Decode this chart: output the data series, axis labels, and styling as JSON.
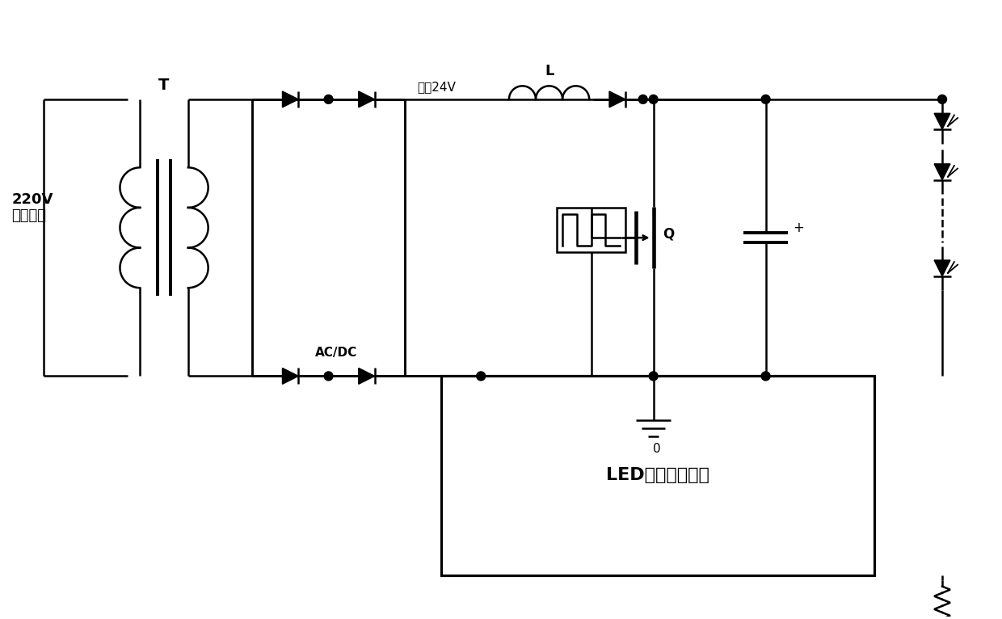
{
  "bg_color": "#ffffff",
  "line_color": "#000000",
  "lw": 1.8,
  "fig_w": 12.4,
  "fig_h": 7.66,
  "label_220v": "220V\n交流市电",
  "label_T": "T",
  "label_ACDC": "AC/DC",
  "label_input": "输入24V",
  "label_L": "L",
  "label_Q": "Q",
  "label_gnd0": "0",
  "label_chip": "LED恒流驱动芯片"
}
